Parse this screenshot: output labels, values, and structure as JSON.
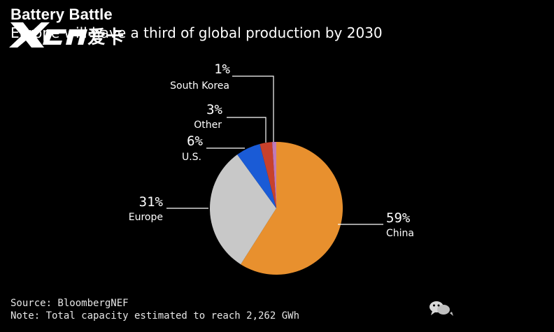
{
  "title": "Battery Battle",
  "subtitle": "Europe will have a third of global production by 2030",
  "watermark": {
    "brand": "XCAR爱卡"
  },
  "chart_data": {
    "type": "pie",
    "title": "Battery Battle",
    "subtitle": "Europe will have a third of global production by 2030",
    "start_angle_deg": 0,
    "direction": "clockwise",
    "slices": [
      {
        "label": "China",
        "value": 59,
        "pct_label": "59%",
        "color": "#e8902e"
      },
      {
        "label": "Europe",
        "value": 31,
        "pct_label": "31%",
        "color": "#c8c8c8"
      },
      {
        "label": "U.S.",
        "value": 6,
        "pct_label": "6%",
        "color": "#1a5bd6"
      },
      {
        "label": "Other",
        "value": 3,
        "pct_label": "3%",
        "color": "#c8412c"
      },
      {
        "label": "South Korea",
        "value": 1,
        "pct_label": "1%",
        "color": "#c07ab8"
      }
    ]
  },
  "footer": {
    "source": "Source: BloombergNEF",
    "note": "Note: Total capacity estimated to reach 2,262 GWh"
  }
}
